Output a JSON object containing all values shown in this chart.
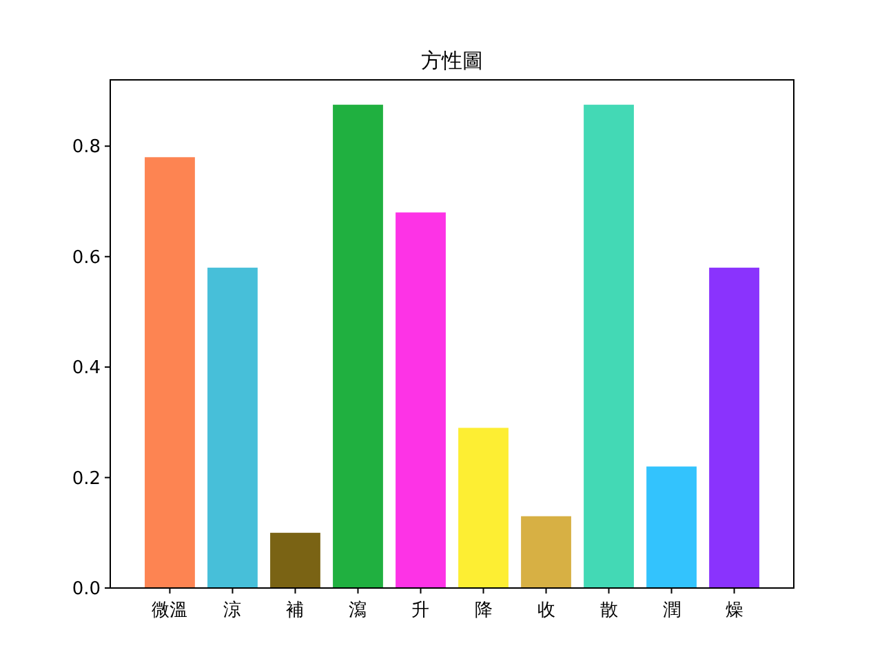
{
  "chart_data": {
    "type": "bar",
    "title": "方性圖",
    "categories": [
      "微溫",
      "涼",
      "補",
      "瀉",
      "升",
      "降",
      "收",
      "散",
      "潤",
      "燥"
    ],
    "values": [
      0.78,
      0.58,
      0.1,
      0.875,
      0.68,
      0.29,
      0.13,
      0.875,
      0.22,
      0.58
    ],
    "colors": [
      "#fd8452",
      "#47bfd9",
      "#7a6314",
      "#20b040",
      "#fd33e6",
      "#fdee33",
      "#d7b044",
      "#43d9b5",
      "#33c3fd",
      "#8a33fd"
    ],
    "ylim": [
      0,
      0.92
    ],
    "yticks": [
      {
        "value": 0,
        "label": "0.0"
      },
      {
        "value": 0.2,
        "label": "0.2"
      },
      {
        "value": 0.4,
        "label": "0.4"
      },
      {
        "value": 0.6,
        "label": "0.6"
      },
      {
        "value": 0.8,
        "label": "0.8"
      }
    ],
    "grid": false
  }
}
